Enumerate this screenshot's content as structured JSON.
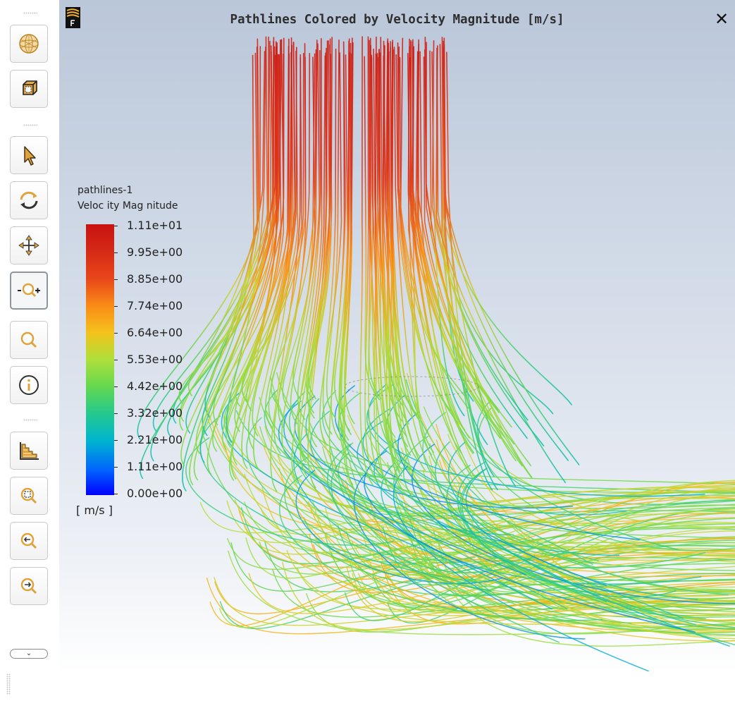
{
  "window": {
    "title": "Pathlines Colored by Velocity Magnitude [m/s]",
    "close_label": "✕"
  },
  "toolbar": {
    "buttons": [
      {
        "name": "mesh-display-button",
        "icon": "wireframe-sphere-icon"
      },
      {
        "name": "view-orientation-button",
        "icon": "view-cube-icon"
      },
      {
        "name": "select-button",
        "icon": "arrow-pointer-icon"
      },
      {
        "name": "rotate-button",
        "icon": "rotate-icon"
      },
      {
        "name": "pan-button",
        "icon": "pan-arrows-icon"
      },
      {
        "name": "zoom-in-out-button",
        "icon": "zoom-in-out-icon",
        "active": true
      },
      {
        "name": "zoom-button",
        "icon": "magnifier-icon"
      },
      {
        "name": "probe-button",
        "icon": "info-icon"
      },
      {
        "name": "display-options-button",
        "icon": "stair-chart-icon"
      },
      {
        "name": "zoom-to-fit-button",
        "icon": "zoom-fit-icon"
      },
      {
        "name": "zoom-previous-button",
        "icon": "zoom-previous-icon"
      },
      {
        "name": "zoom-next-button",
        "icon": "zoom-next-icon"
      }
    ],
    "expand_label": "⌄"
  },
  "legend": {
    "title": "pathlines-1",
    "subtitle": "Veloc ity Mag nitude",
    "unit": "[ m/s ]",
    "labels": [
      "1.11e+01",
      "9.95e+00",
      "8.85e+00",
      "7.74e+00",
      "6.64e+00",
      "5.53e+00",
      "4.42e+00",
      "3.32e+00",
      "2.21e+00",
      "1.11e+00",
      "0.00e+00"
    ],
    "colors": [
      "#0000ff",
      "#0062ff",
      "#00b4d0",
      "#24c98e",
      "#63d84f",
      "#aee03a",
      "#f4c21c",
      "#fa8a16",
      "#e8461a",
      "#d52a16",
      "#c81212"
    ]
  }
}
